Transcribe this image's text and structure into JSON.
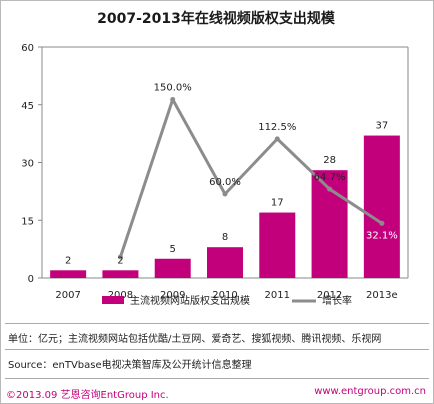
{
  "title": "2007-2013年在线视频版权支出规模",
  "chart_data": {
    "type": "bar",
    "categories": [
      "2007",
      "2008",
      "2009",
      "2010",
      "2011",
      "2012",
      "2013e"
    ],
    "series": [
      {
        "name": "主流视频网站版权支出规模",
        "type": "bar",
        "axis": "left",
        "color": "#c3007c",
        "values": [
          2,
          2,
          5,
          8,
          17,
          28,
          37
        ],
        "labels": [
          "2",
          "2",
          "5",
          "8",
          "17",
          "28",
          "37"
        ]
      },
      {
        "name": "增长率",
        "type": "line",
        "axis": "right",
        "color": "#8c8c8c",
        "values": [
          null,
          0,
          150.0,
          60.0,
          112.5,
          64.7,
          32.1
        ],
        "labels": [
          "",
          "",
          "150.0%",
          "60.0%",
          "112.5%",
          "64.7%",
          "32.1%"
        ]
      }
    ],
    "y_axis": {
      "ylim": [
        0,
        60
      ],
      "ticks": [
        "0",
        "15",
        "30",
        "45",
        "60"
      ]
    },
    "y2_range": [
      -20,
      200
    ],
    "legend": "bottom-right",
    "grid": false
  },
  "notes": {
    "unit": "单位：亿元；主流视频网站包括优酷/土豆网、爱奇艺、搜狐视频、腾讯视频、乐视网",
    "source": "Source：enTVbase电视决策智库及公开统计信息整理"
  },
  "footer": {
    "left": "©2013.09  艺恩咨询EntGroup Inc.",
    "right": "www.entgroup.com.cn"
  },
  "colors": {
    "brand": "#c3007c",
    "line": "#8c8c8c"
  }
}
